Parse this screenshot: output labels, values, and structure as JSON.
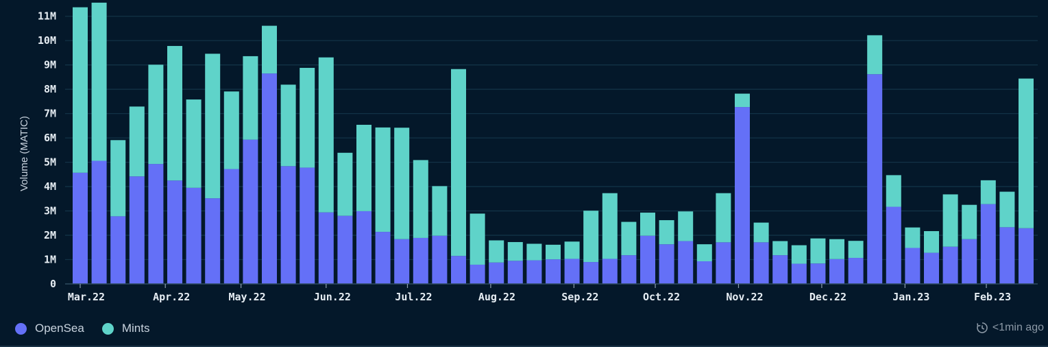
{
  "chart_data": {
    "type": "bar",
    "stacked": true,
    "ylabel": "Volume (MATIC)",
    "ylim": [
      0,
      11500000
    ],
    "yticks": [
      0,
      1000000,
      2000000,
      3000000,
      4000000,
      5000000,
      6000000,
      7000000,
      8000000,
      9000000,
      10000000,
      11000000
    ],
    "ytick_labels": [
      "0",
      "1M",
      "2M",
      "3M",
      "4M",
      "5M",
      "6M",
      "7M",
      "8M",
      "9M",
      "10M",
      "11M"
    ],
    "x_tick_labels": [
      {
        "label": "Mar.22",
        "at_bar": 0
      },
      {
        "label": "Apr.22",
        "at_bar": 4.5
      },
      {
        "label": "May.22",
        "at_bar": 8.5
      },
      {
        "label": "Jun.22",
        "at_bar": 13
      },
      {
        "label": "Jul.22",
        "at_bar": 17.3
      },
      {
        "label": "Aug.22",
        "at_bar": 21.7
      },
      {
        "label": "Sep.22",
        "at_bar": 26.1
      },
      {
        "label": "Oct.22",
        "at_bar": 30.4
      },
      {
        "label": "Nov.22",
        "at_bar": 34.8
      },
      {
        "label": "Dec.22",
        "at_bar": 39.2
      },
      {
        "label": "Jan.23",
        "at_bar": 43.6
      },
      {
        "label": "Feb.23",
        "at_bar": 47.9
      }
    ],
    "grid": true,
    "legend_position": "bottom-left",
    "series": [
      {
        "name": "OpenSea",
        "color": "#6470f7",
        "values": [
          4570000,
          5060000,
          2780000,
          4420000,
          4930000,
          4250000,
          3950000,
          3520000,
          4720000,
          5930000,
          8650000,
          4840000,
          4780000,
          2940000,
          2800000,
          2990000,
          2140000,
          1840000,
          1890000,
          1980000,
          1150000,
          790000,
          880000,
          950000,
          970000,
          1010000,
          1030000,
          900000,
          1030000,
          1180000,
          1980000,
          1630000,
          1760000,
          930000,
          1710000,
          7270000,
          1710000,
          1180000,
          830000,
          840000,
          1020000,
          1070000,
          8620000,
          3170000,
          1480000,
          1280000,
          1530000,
          1840000,
          3280000,
          2330000,
          2290000
        ]
      },
      {
        "name": "Mints",
        "color": "#5fd3c9",
        "values": [
          6800000,
          6500000,
          3130000,
          2870000,
          4080000,
          5530000,
          3630000,
          5940000,
          3190000,
          3430000,
          1960000,
          3350000,
          4100000,
          6370000,
          2590000,
          3550000,
          4290000,
          4580000,
          3200000,
          2040000,
          7680000,
          2100000,
          910000,
          770000,
          680000,
          600000,
          710000,
          2110000,
          2700000,
          1370000,
          950000,
          990000,
          1220000,
          700000,
          2020000,
          550000,
          810000,
          580000,
          760000,
          1030000,
          820000,
          700000,
          1600000,
          1300000,
          840000,
          890000,
          2150000,
          1410000,
          980000,
          1460000,
          6150000
        ]
      }
    ]
  },
  "legend": {
    "items": [
      {
        "label": "OpenSea",
        "color": "#6470f7"
      },
      {
        "label": "Mints",
        "color": "#5fd3c9"
      }
    ]
  },
  "status": {
    "updated": "<1min ago"
  },
  "colors": {
    "background": "#04182a",
    "grid": "#123246",
    "axis_text": "#e6edf3"
  }
}
